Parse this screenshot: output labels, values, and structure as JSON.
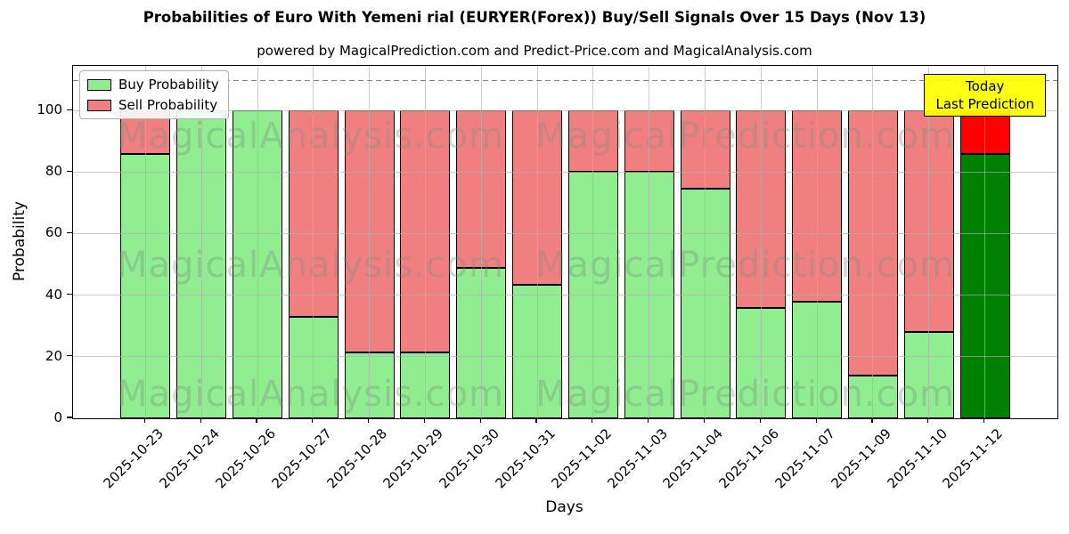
{
  "figure": {
    "title": "Probabilities of Euro With Yemeni rial (EURYER(Forex)) Buy/Sell Signals Over 15 Days (Nov 13)",
    "subtitle": "powered by MagicalPrediction.com and Predict-Price.com and MagicalAnalysis.com",
    "xlabel": "Days",
    "ylabel": "Probability"
  },
  "legend": {
    "buy_label": "Buy Probability",
    "sell_label": "Sell Probability"
  },
  "annotation": {
    "line1": "Today",
    "line2": "Last Prediction"
  },
  "watermark": {
    "left_text": "MagicalAnalysis.com",
    "right_text": "MagicalPrediction.com"
  },
  "colors": {
    "buy": "#90EE90",
    "sell": "#F08080",
    "today_buy": "#008000",
    "today_sell": "#FF0000",
    "bar_edge": "#000000",
    "grid": "#b0b0b0",
    "dashed_line": "#808080",
    "annotation_bg": "#FFFF00",
    "annotation_border": "#000000"
  },
  "chart_data": {
    "type": "bar",
    "stacked": true,
    "title": "Probabilities of Euro With Yemeni rial (EURYER(Forex)) Buy/Sell Signals Over 15 Days (Nov 13)",
    "xlabel": "Days",
    "ylabel": "Probability",
    "categories": [
      "2025-10-23",
      "2025-10-24",
      "2025-10-26",
      "2025-10-27",
      "2025-10-28",
      "2025-10-29",
      "2025-10-30",
      "2025-10-31",
      "2025-11-02",
      "2025-11-03",
      "2025-11-04",
      "2025-11-06",
      "2025-11-07",
      "2025-11-09",
      "2025-11-10",
      "2025-11-12"
    ],
    "series": [
      {
        "name": "Buy Probability",
        "color": "#90EE90",
        "values": [
          86,
          100,
          100,
          33,
          21.5,
          21.5,
          49,
          43.5,
          80,
          80,
          74.5,
          36,
          38,
          14,
          28,
          86
        ]
      },
      {
        "name": "Sell Probability",
        "color": "#F08080",
        "values": [
          14,
          0,
          0,
          67,
          78.5,
          78.5,
          51,
          56.5,
          20,
          20,
          25.5,
          64,
          62,
          86,
          72,
          14
        ]
      }
    ],
    "today_bar": {
      "category": "2025-11-12",
      "index": 15,
      "buy_color": "#008000",
      "sell_color": "#FF0000"
    },
    "ylim": [
      0,
      114.5
    ],
    "yticks": [
      0,
      20,
      40,
      60,
      80,
      100
    ],
    "dashed_line_y": 110,
    "grid": true,
    "legend_position": "upper left",
    "annotation_text": "Today\nLast Prediction"
  }
}
